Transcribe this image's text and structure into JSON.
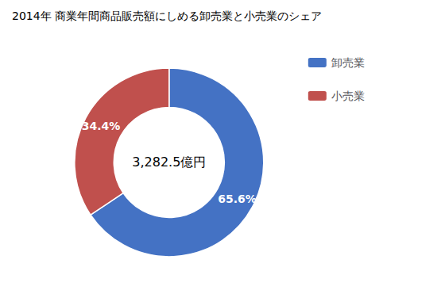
{
  "chart_data": {
    "type": "pie",
    "title": "2014年 商業年間商品販売額にしめる卸売業と小売業のシェア",
    "categories": [
      "卸売業",
      "小売業"
    ],
    "values": [
      65.6,
      34.4
    ],
    "value_labels": [
      "65.6%",
      "34.4%"
    ],
    "colors": [
      "#4472C4",
      "#C0504D"
    ],
    "annotations": [
      "3,282.5億円"
    ],
    "data_labels": true,
    "legend": "upper right"
  }
}
